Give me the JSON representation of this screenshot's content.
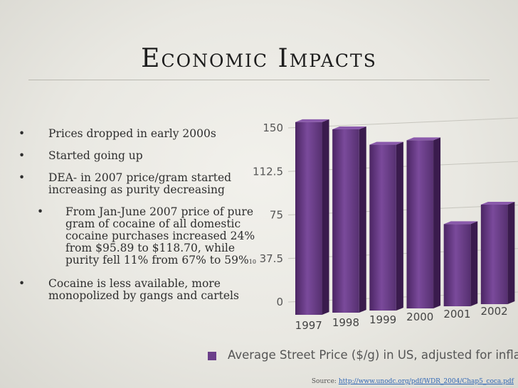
{
  "slide": {
    "title": "Economic Impacts",
    "bullets": [
      "Prices dropped in early 2000s",
      "Started going up",
      "DEA- in 2007 price/gram started increasing as purity decreasing"
    ],
    "sub_bullet": "From Jan-June 2007 price of pure gram of cocaine  of all domestic cocaine purchases increased 24% from $95.89 to $118.70, while purity fell 11% from 67% to 59%",
    "footnote_mark": "10",
    "last_bullet": "Cocaine is less available, more monopolized by gangs and cartels",
    "source_label": "Source:",
    "source_link": "http://www.unodc.org/pdf/WDR_2004/Chap5_coca.pdf",
    "bullet_glyph": "•"
  },
  "chart_data": {
    "type": "bar",
    "categories": [
      "1997",
      "1998",
      "1999",
      "2000",
      "2001",
      "2002"
    ],
    "values": [
      155,
      150,
      138,
      143,
      72,
      90
    ],
    "ylim": [
      0,
      150
    ],
    "yticks": [
      "150",
      "112.5",
      "75",
      "37.5",
      "0"
    ],
    "legend": "Average Street Price ($/g) in US, adjusted for inflation",
    "legend_placement": "bottom",
    "bar_color": "#6b3f8a",
    "grid": true
  }
}
